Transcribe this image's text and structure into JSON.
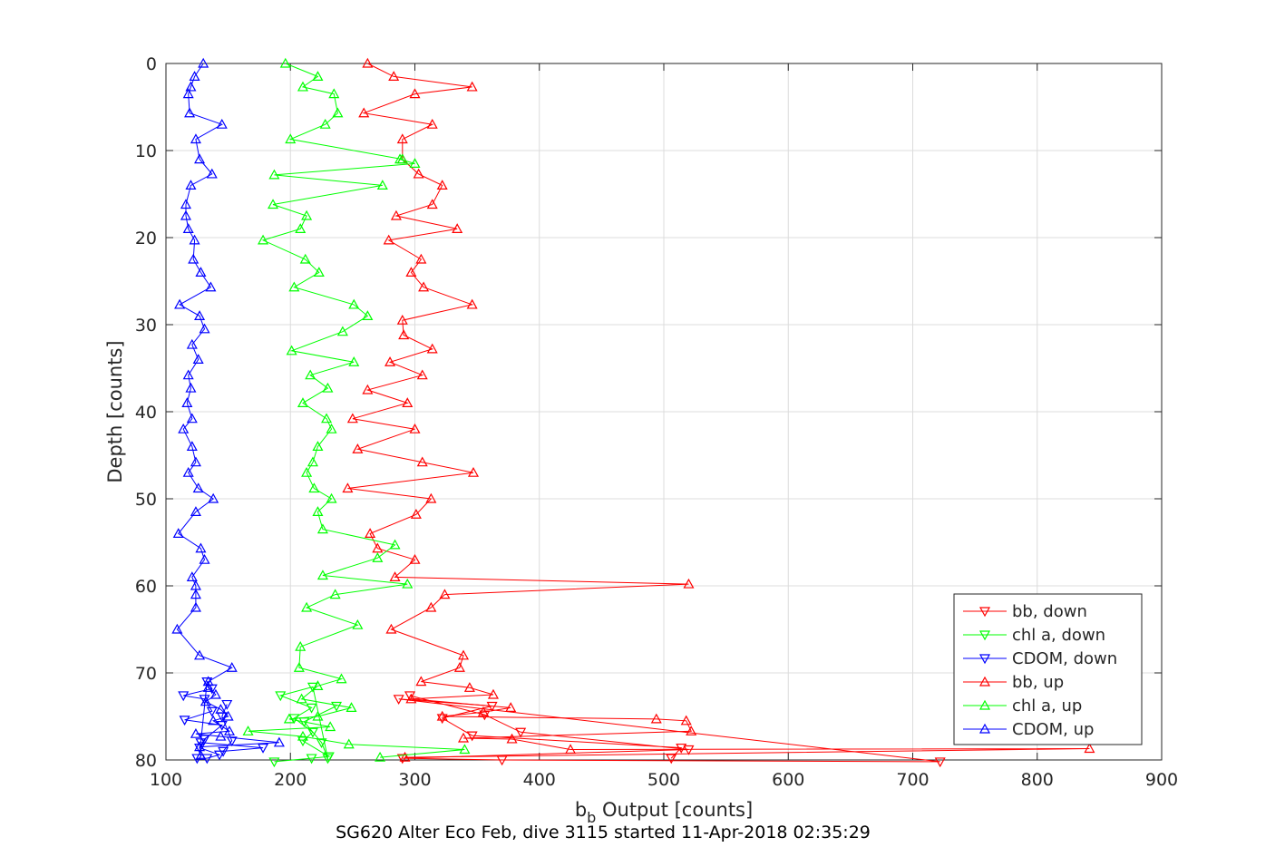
{
  "chart_data": {
    "type": "line",
    "title": "",
    "xlabel": "b",
    "xlabel_subscript": "b",
    "xlabel_suffix": " Output [counts]",
    "ylabel": "Depth [counts]",
    "caption": "SG620 Alter Eco Feb, dive 3115 started 11-Apr-2018 02:35:29",
    "xlim": [
      100,
      900
    ],
    "ylim": [
      0,
      80
    ],
    "y_reversed": true,
    "grid": true,
    "legend_position": "bottom-right",
    "xticks": [
      "100",
      "200",
      "300",
      "400",
      "500",
      "600",
      "700",
      "800",
      "900"
    ],
    "yticks": [
      "0",
      "10",
      "20",
      "30",
      "40",
      "50",
      "60",
      "70",
      "80"
    ],
    "series": [
      {
        "name": "bb, down",
        "color": "#ff0000",
        "marker": "triangle-down",
        "points": [
          [
            506,
            79.8
          ],
          [
            514,
            78.6
          ],
          [
            346,
            77.2
          ],
          [
            322,
            75.2
          ],
          [
            362,
            73.8
          ],
          [
            287,
            73.0
          ],
          [
            722,
            80.2
          ],
          [
            370,
            80.0
          ],
          [
            290,
            79.8
          ],
          [
            520,
            78.8
          ],
          [
            385,
            76.8
          ],
          [
            356,
            74.8
          ],
          [
            296,
            72.6
          ]
        ]
      },
      {
        "name": "chl a, down",
        "color": "#00ff00",
        "marker": "triangle-down",
        "points": [
          [
            187,
            80.2
          ],
          [
            217,
            79.8
          ],
          [
            231,
            79.6
          ],
          [
            210,
            77.8
          ],
          [
            218,
            76.8
          ],
          [
            203,
            75.2
          ],
          [
            217,
            74.0
          ],
          [
            192,
            72.6
          ],
          [
            218,
            71.6
          ],
          [
            230,
            79.8
          ],
          [
            225,
            78.0
          ],
          [
            211,
            75.6
          ],
          [
            237,
            73.8
          ]
        ]
      },
      {
        "name": "CDOM, down",
        "color": "#0000ff",
        "marker": "triangle-down",
        "points": [
          [
            125,
            79.8
          ],
          [
            133,
            79.8
          ],
          [
            143,
            79.4
          ],
          [
            127,
            78.6
          ],
          [
            131,
            77.6
          ],
          [
            145,
            76.0
          ],
          [
            115,
            75.4
          ],
          [
            137,
            74.4
          ],
          [
            131,
            73.0
          ],
          [
            114,
            72.6
          ],
          [
            137,
            71.8
          ],
          [
            133,
            71.0
          ],
          [
            128,
            78.0
          ],
          [
            178,
            78.6
          ],
          [
            146,
            79.0
          ],
          [
            153,
            77.8
          ],
          [
            145,
            75.0
          ],
          [
            149,
            73.6
          ]
        ]
      },
      {
        "name": "bb, up",
        "color": "#ff0000",
        "marker": "triangle-up",
        "points": [
          [
            262,
            0
          ],
          [
            283,
            1.5
          ],
          [
            346,
            2.7
          ],
          [
            300,
            3.5
          ],
          [
            259,
            5.7
          ],
          [
            314,
            7.0
          ],
          [
            290,
            8.7
          ],
          [
            290,
            11.0
          ],
          [
            303,
            12.7
          ],
          [
            322,
            14.0
          ],
          [
            314,
            16.2
          ],
          [
            285,
            17.5
          ],
          [
            334,
            19.0
          ],
          [
            279,
            20.3
          ],
          [
            305,
            22.5
          ],
          [
            297,
            24.0
          ],
          [
            307,
            25.7
          ],
          [
            346,
            27.7
          ],
          [
            290,
            29.5
          ],
          [
            291,
            31.2
          ],
          [
            314,
            32.8
          ],
          [
            280,
            34.3
          ],
          [
            306,
            35.8
          ],
          [
            262,
            37.5
          ],
          [
            294,
            39.0
          ],
          [
            250,
            40.8
          ],
          [
            300,
            42.0
          ],
          [
            254,
            44.3
          ],
          [
            306,
            45.8
          ],
          [
            347,
            47.0
          ],
          [
            246,
            48.8
          ],
          [
            313,
            50.0
          ],
          [
            301,
            51.8
          ],
          [
            264,
            54.0
          ],
          [
            270,
            55.7
          ],
          [
            300,
            57.0
          ],
          [
            284,
            59.0
          ],
          [
            520,
            59.8
          ],
          [
            324,
            61.0
          ],
          [
            313,
            62.5
          ],
          [
            281,
            65.0
          ],
          [
            339,
            68.0
          ],
          [
            336,
            69.4
          ],
          [
            305,
            71.0
          ],
          [
            344,
            71.7
          ],
          [
            363,
            72.5
          ],
          [
            297,
            73.0
          ],
          [
            377,
            74.0
          ],
          [
            355,
            74.5
          ],
          [
            322,
            75.0
          ],
          [
            494,
            75.3
          ],
          [
            518,
            75.5
          ],
          [
            522,
            76.7
          ],
          [
            339,
            77.5
          ],
          [
            378,
            77.6
          ],
          [
            425,
            78.8
          ],
          [
            842,
            78.7
          ],
          [
            292,
            79.7
          ]
        ]
      },
      {
        "name": "chl a, up",
        "color": "#00ff00",
        "marker": "triangle-up",
        "points": [
          [
            196,
            0
          ],
          [
            222,
            1.5
          ],
          [
            210,
            2.7
          ],
          [
            235,
            3.5
          ],
          [
            238,
            5.7
          ],
          [
            228,
            7.0
          ],
          [
            200,
            8.7
          ],
          [
            290,
            11.0
          ],
          [
            288,
            11.0
          ],
          [
            300,
            11.5
          ],
          [
            187,
            12.8
          ],
          [
            274,
            14.0
          ],
          [
            186,
            16.2
          ],
          [
            213,
            17.5
          ],
          [
            208,
            19.0
          ],
          [
            178,
            20.3
          ],
          [
            212,
            22.5
          ],
          [
            223,
            24.0
          ],
          [
            203,
            25.7
          ],
          [
            251,
            27.7
          ],
          [
            262,
            29.0
          ],
          [
            242,
            30.8
          ],
          [
            201,
            33.0
          ],
          [
            251,
            34.3
          ],
          [
            216,
            35.8
          ],
          [
            230,
            37.3
          ],
          [
            210,
            39.0
          ],
          [
            229,
            40.8
          ],
          [
            233,
            42.0
          ],
          [
            222,
            44.0
          ],
          [
            218,
            45.8
          ],
          [
            213,
            47.0
          ],
          [
            219,
            48.8
          ],
          [
            233,
            50.0
          ],
          [
            222,
            51.5
          ],
          [
            226,
            53.5
          ],
          [
            284,
            55.3
          ],
          [
            270,
            56.8
          ],
          [
            226,
            58.8
          ],
          [
            294,
            59.8
          ],
          [
            236,
            61.0
          ],
          [
            213,
            62.5
          ],
          [
            254,
            64.5
          ],
          [
            208,
            67.0
          ],
          [
            207,
            69.4
          ],
          [
            241,
            70.7
          ],
          [
            222,
            71.5
          ],
          [
            209,
            73.0
          ],
          [
            249,
            74.0
          ],
          [
            222,
            75.0
          ],
          [
            199,
            75.3
          ],
          [
            232,
            76.2
          ],
          [
            166,
            76.7
          ],
          [
            210,
            77.3
          ],
          [
            247,
            78.2
          ],
          [
            340,
            78.8
          ],
          [
            272,
            79.7
          ]
        ]
      },
      {
        "name": "CDOM, up",
        "color": "#0000ff",
        "marker": "triangle-up",
        "points": [
          [
            130,
            0
          ],
          [
            123,
            1.5
          ],
          [
            120,
            2.7
          ],
          [
            118,
            3.5
          ],
          [
            119,
            5.7
          ],
          [
            145,
            7.0
          ],
          [
            124,
            8.7
          ],
          [
            127,
            11.0
          ],
          [
            137,
            12.7
          ],
          [
            120,
            14.0
          ],
          [
            116,
            16.2
          ],
          [
            116,
            17.5
          ],
          [
            118,
            19.0
          ],
          [
            123,
            20.3
          ],
          [
            122,
            22.5
          ],
          [
            128,
            24.0
          ],
          [
            136,
            25.7
          ],
          [
            111,
            27.7
          ],
          [
            127,
            29.0
          ],
          [
            131,
            30.5
          ],
          [
            121,
            32.3
          ],
          [
            126,
            34.0
          ],
          [
            118,
            35.8
          ],
          [
            120,
            37.3
          ],
          [
            117,
            39.0
          ],
          [
            121,
            40.8
          ],
          [
            114,
            42.0
          ],
          [
            121,
            44.0
          ],
          [
            124,
            45.8
          ],
          [
            118,
            47.0
          ],
          [
            126,
            48.8
          ],
          [
            138,
            50.0
          ],
          [
            124,
            51.5
          ],
          [
            110,
            54.0
          ],
          [
            128,
            55.7
          ],
          [
            131,
            57.0
          ],
          [
            121,
            59.0
          ],
          [
            124,
            60.0
          ],
          [
            124,
            61.0
          ],
          [
            124,
            62.5
          ],
          [
            109,
            65.0
          ],
          [
            127,
            68.0
          ],
          [
            153,
            69.4
          ],
          [
            134,
            71.0
          ],
          [
            134,
            71.7
          ],
          [
            140,
            72.5
          ],
          [
            132,
            73.3
          ],
          [
            144,
            74.2
          ],
          [
            150,
            75.0
          ],
          [
            138,
            75.5
          ],
          [
            151,
            76.7
          ],
          [
            124,
            77.0
          ],
          [
            144,
            77.3
          ],
          [
            191,
            78.0
          ],
          [
            127,
            78.5
          ],
          [
            128,
            79.5
          ]
        ]
      }
    ]
  }
}
